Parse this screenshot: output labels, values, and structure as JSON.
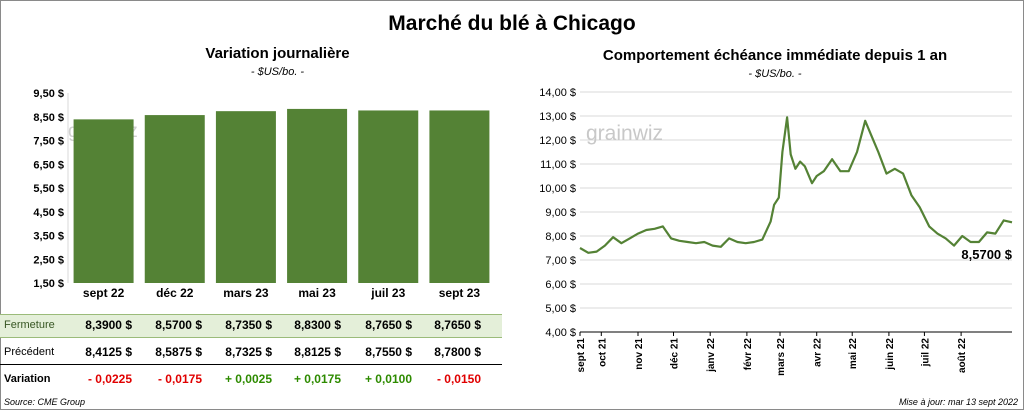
{
  "title": "Marché du blé à Chicago",
  "left": {
    "subtitle": "Variation  journalière",
    "unit": "- $US/bo. -",
    "watermark": "grainwiz"
  },
  "right": {
    "subtitle": "Comportement  échéance immédiate depuis 1 an",
    "unit": "- $US/bo. -",
    "watermark": "grainwiz",
    "last_label": "8,5700 $"
  },
  "table": {
    "row_labels": {
      "close": "Fermeture",
      "prev": "Précédent",
      "var": "Variation"
    },
    "contracts": [
      "sept 22",
      "déc 22",
      "mars 23",
      "mai 23",
      "juil 23",
      "sept 23"
    ],
    "close": [
      "8,3900  $",
      "8,5700  $",
      "8,7350  $",
      "8,8300  $",
      "8,7650  $",
      "8,7650  $"
    ],
    "prev": [
      "8,4125  $",
      "8,5875  $",
      "8,7325  $",
      "8,8125  $",
      "8,7550  $",
      "8,7800  $"
    ],
    "var": [
      "- 0,0225",
      "- 0,0175",
      "+ 0,0025",
      "+ 0,0175",
      "+ 0,0100",
      "- 0,0150"
    ]
  },
  "footer": {
    "source": "Source: CME Group",
    "updated": "Mise à jour: mar 13 sept 2022"
  },
  "colors": {
    "bar": "#548235",
    "line": "#548235",
    "negative": "#e00000",
    "positive": "#2e8b00",
    "highlight": "#e4efd9"
  },
  "chart_data": [
    {
      "type": "bar",
      "title": "Variation  journalière",
      "subtitle": "- $US/bo. -",
      "categories": [
        "sept 22",
        "déc 22",
        "mars 23",
        "mai 23",
        "juil 23",
        "sept 23"
      ],
      "values": [
        8.39,
        8.57,
        8.735,
        8.83,
        8.765,
        8.765
      ],
      "ylim": [
        1.5,
        9.5
      ],
      "yticks": [
        "1,50 $",
        "2,50 $",
        "3,50 $",
        "4,50 $",
        "5,50 $",
        "6,50 $",
        "7,50 $",
        "8,50 $",
        "9,50 $"
      ],
      "grid": false
    },
    {
      "type": "line",
      "title": "Comportement  échéance immédiate depuis 1 an",
      "subtitle": "- $US/bo. -",
      "ylim": [
        4.0,
        14.0
      ],
      "yticks": [
        "4,00 $",
        "5,00 $",
        "6,00 $",
        "7,00 $",
        "8,00 $",
        "9,00 $",
        "10,00 $",
        "11,00 $",
        "12,00 $",
        "13,00 $",
        "14,00 $"
      ],
      "xticks": [
        "sept 21",
        "oct 21",
        "nov 21",
        "déc 21",
        "janv 22",
        "févr 22",
        "mars 22",
        "avr 22",
        "mai 22",
        "juin 22",
        "juil 22",
        "août 22"
      ],
      "grid": true,
      "series": [
        {
          "x": [
            "2021-09-13",
            "2021-09-20",
            "2021-09-27",
            "2021-10-04",
            "2021-10-11",
            "2021-10-18",
            "2021-10-25",
            "2021-11-01",
            "2021-11-08",
            "2021-11-15",
            "2021-11-22",
            "2021-11-29",
            "2021-12-06",
            "2021-12-13",
            "2021-12-20",
            "2021-12-27",
            "2022-01-03",
            "2022-01-10",
            "2022-01-17",
            "2022-01-24",
            "2022-01-31",
            "2022-02-07",
            "2022-02-14",
            "2022-02-21",
            "2022-02-24",
            "2022-02-28",
            "2022-03-03",
            "2022-03-07",
            "2022-03-10",
            "2022-03-14",
            "2022-03-18",
            "2022-03-22",
            "2022-03-28",
            "2022-04-01",
            "2022-04-07",
            "2022-04-14",
            "2022-04-21",
            "2022-04-28",
            "2022-05-05",
            "2022-05-12",
            "2022-05-17",
            "2022-05-23",
            "2022-05-30",
            "2022-06-06",
            "2022-06-13",
            "2022-06-20",
            "2022-06-27",
            "2022-07-05",
            "2022-07-12",
            "2022-07-19",
            "2022-07-26",
            "2022-08-02",
            "2022-08-09",
            "2022-08-16",
            "2022-08-23",
            "2022-08-30",
            "2022-09-06",
            "2022-09-13"
          ],
          "y": [
            7.5,
            7.3,
            7.35,
            7.6,
            7.95,
            7.7,
            7.9,
            8.1,
            8.25,
            8.3,
            8.4,
            7.9,
            7.8,
            7.75,
            7.7,
            7.75,
            7.6,
            7.55,
            7.9,
            7.75,
            7.7,
            7.75,
            7.85,
            8.6,
            9.3,
            9.6,
            11.5,
            12.94,
            11.4,
            10.8,
            11.1,
            10.9,
            10.2,
            10.5,
            10.7,
            11.2,
            10.7,
            10.7,
            11.5,
            12.8,
            12.2,
            11.5,
            10.6,
            10.8,
            10.6,
            9.7,
            9.2,
            8.4,
            8.1,
            7.9,
            7.6,
            8.0,
            7.75,
            7.75,
            8.15,
            8.1,
            8.65,
            8.57
          ]
        }
      ]
    }
  ]
}
